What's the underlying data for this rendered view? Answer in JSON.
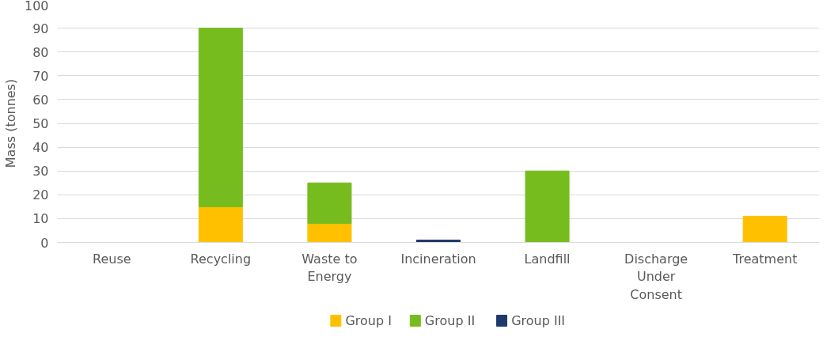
{
  "chart_data": {
    "type": "bar",
    "stacked": true,
    "ylabel": "Mass (tonnes)",
    "categories": [
      "Reuse",
      "Recycling",
      "Waste to Energy",
      "Incineration",
      "Landfill",
      "Discharge Under Consent",
      "Treatment"
    ],
    "series": [
      {
        "name": "Group I",
        "color": "#ffc000",
        "values": [
          null,
          15,
          8,
          null,
          null,
          null,
          11
        ]
      },
      {
        "name": "Group II",
        "color": "#77bc1f",
        "values": [
          null,
          75,
          17,
          null,
          30,
          null,
          null
        ]
      },
      {
        "name": "Group III",
        "color": "#1f3a68",
        "values": [
          null,
          null,
          null,
          1,
          null,
          null,
          null
        ]
      }
    ],
    "ylim": [
      0,
      100
    ],
    "yticks": [
      0,
      10,
      20,
      30,
      40,
      50,
      60,
      70,
      80,
      90,
      100
    ],
    "grid": "y",
    "legend": "bottom"
  }
}
